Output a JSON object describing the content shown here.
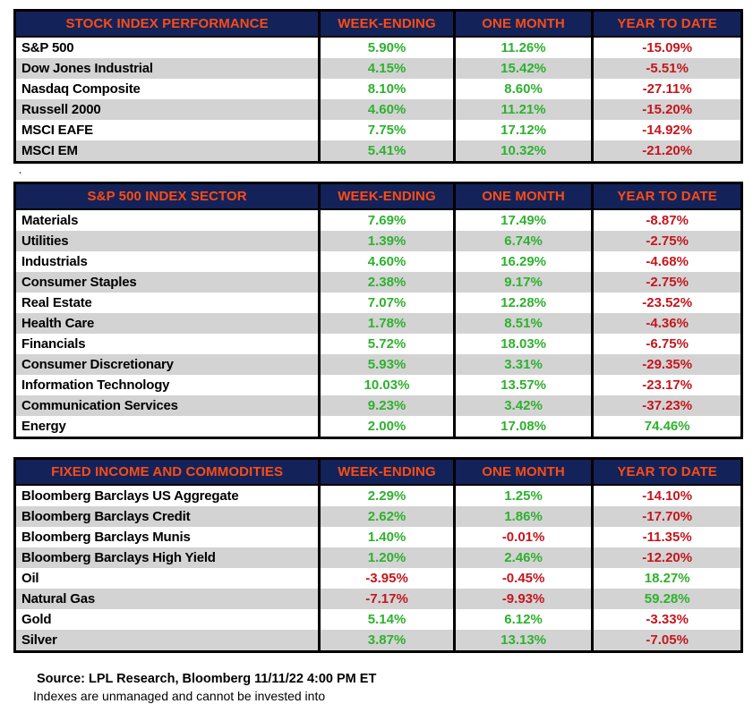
{
  "colors": {
    "header_bg": "#14225A",
    "header_text": "#FB4D12",
    "positive": "#2EB12E",
    "negative": "#C4161C",
    "row_alt_bg": "#D3D3D3",
    "border": "#000000"
  },
  "footnote_dot": ".",
  "footer": {
    "source": "Source: LPL Research, Bloomberg 11/11/22 4:00 PM ET",
    "disclaimer": "Indexes are unmanaged and cannot be invested into"
  },
  "chart_data": [
    {
      "type": "table",
      "title": "STOCK INDEX PERFORMANCE",
      "columns": [
        "WEEK-ENDING",
        "ONE MONTH",
        "YEAR TO DATE"
      ],
      "rows": [
        {
          "label": "S&P 500",
          "values": [
            "5.90%",
            "11.26%",
            "-15.09%"
          ]
        },
        {
          "label": "Dow Jones Industrial",
          "values": [
            "4.15%",
            "15.42%",
            "-5.51%"
          ]
        },
        {
          "label": "Nasdaq Composite",
          "values": [
            "8.10%",
            "8.60%",
            "-27.11%"
          ]
        },
        {
          "label": "Russell 2000",
          "values": [
            "4.60%",
            "11.21%",
            "-15.20%"
          ]
        },
        {
          "label": "MSCI EAFE",
          "values": [
            "7.75%",
            "17.12%",
            "-14.92%"
          ]
        },
        {
          "label": "MSCI EM",
          "values": [
            "5.41%",
            "10.32%",
            "-21.20%"
          ]
        }
      ]
    },
    {
      "type": "table",
      "title": "S&P 500 INDEX SECTOR",
      "columns": [
        "WEEK-ENDING",
        "ONE MONTH",
        "YEAR TO DATE"
      ],
      "rows": [
        {
          "label": "Materials",
          "values": [
            "7.69%",
            "17.49%",
            "-8.87%"
          ]
        },
        {
          "label": "Utilities",
          "values": [
            "1.39%",
            "6.74%",
            "-2.75%"
          ]
        },
        {
          "label": "Industrials",
          "values": [
            "4.60%",
            "16.29%",
            "-4.68%"
          ]
        },
        {
          "label": "Consumer Staples",
          "values": [
            "2.38%",
            "9.17%",
            "-2.75%"
          ]
        },
        {
          "label": "Real Estate",
          "values": [
            "7.07%",
            "12.28%",
            "-23.52%"
          ]
        },
        {
          "label": "Health Care",
          "values": [
            "1.78%",
            "8.51%",
            "-4.36%"
          ]
        },
        {
          "label": "Financials",
          "values": [
            "5.72%",
            "18.03%",
            "-6.75%"
          ]
        },
        {
          "label": "Consumer Discretionary",
          "values": [
            "5.93%",
            "3.31%",
            "-29.35%"
          ]
        },
        {
          "label": "Information Technology",
          "values": [
            "10.03%",
            "13.57%",
            "-23.17%"
          ]
        },
        {
          "label": "Communication Services",
          "values": [
            "9.23%",
            "3.42%",
            "-37.23%"
          ]
        },
        {
          "label": "Energy",
          "values": [
            "2.00%",
            "17.08%",
            "74.46%"
          ]
        }
      ]
    },
    {
      "type": "table",
      "title": "FIXED INCOME AND COMMODITIES",
      "columns": [
        "WEEK-ENDING",
        "ONE MONTH",
        "YEAR TO DATE"
      ],
      "rows": [
        {
          "label": "Bloomberg Barclays US Aggregate",
          "values": [
            "2.29%",
            "1.25%",
            "-14.10%"
          ]
        },
        {
          "label": "Bloomberg Barclays Credit",
          "values": [
            "2.62%",
            "1.86%",
            "-17.70%"
          ]
        },
        {
          "label": "Bloomberg Barclays Munis",
          "values": [
            "1.40%",
            "-0.01%",
            "-11.35%"
          ]
        },
        {
          "label": "Bloomberg Barclays High Yield",
          "values": [
            "1.20%",
            "2.46%",
            "-12.20%"
          ]
        },
        {
          "label": "Oil",
          "values": [
            "-3.95%",
            "-0.45%",
            "18.27%"
          ]
        },
        {
          "label": "Natural Gas",
          "values": [
            "-7.17%",
            "-9.93%",
            "59.28%"
          ]
        },
        {
          "label": "Gold",
          "values": [
            "5.14%",
            "6.12%",
            "-3.33%"
          ]
        },
        {
          "label": "Silver",
          "values": [
            "3.87%",
            "13.13%",
            "-7.05%"
          ]
        }
      ]
    }
  ]
}
